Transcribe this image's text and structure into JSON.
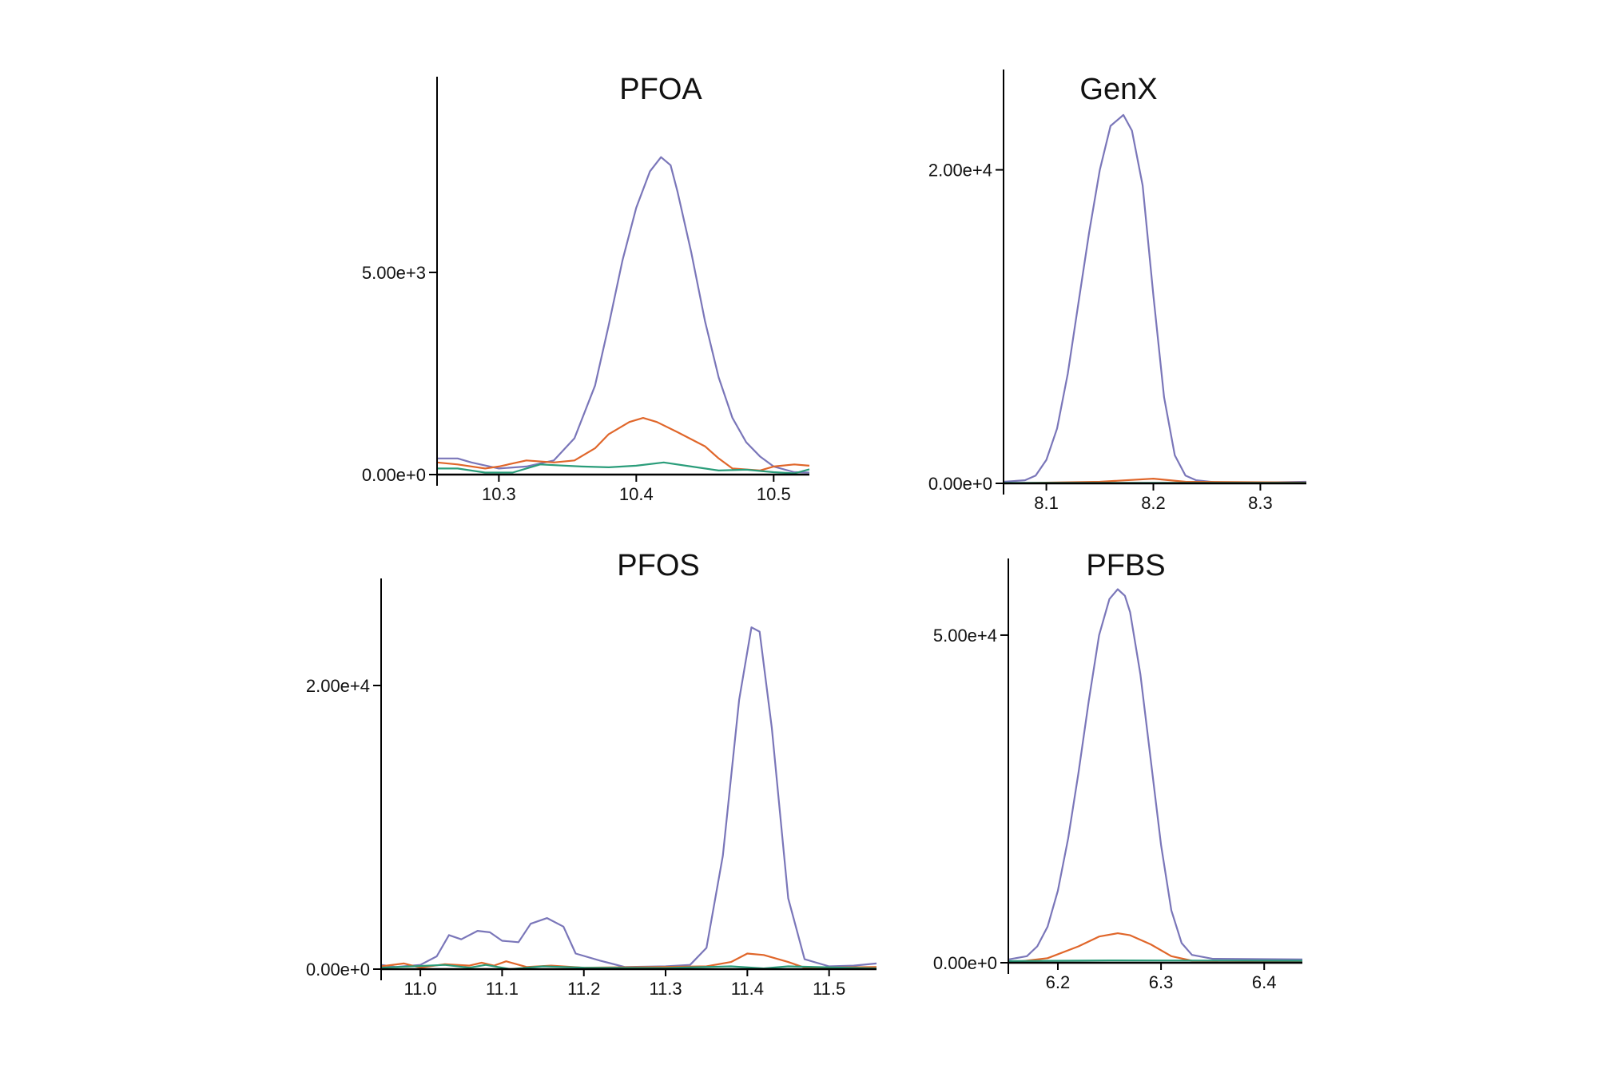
{
  "colors": {
    "series_a": "#7a76b9",
    "series_b": "#e0662a",
    "series_c": "#2a9d7a",
    "axis": "#000000"
  },
  "chart_data": [
    {
      "type": "line",
      "title": "PFOA",
      "xlim": [
        10.255,
        10.526
      ],
      "ylim": [
        0,
        9840
      ],
      "xticks": [
        {
          "v": 10.3,
          "label": "10.3"
        },
        {
          "v": 10.4,
          "label": "10.4"
        },
        {
          "v": 10.5,
          "label": "10.5"
        }
      ],
      "yticks": [
        {
          "v": 0,
          "label": "0.00e+0"
        },
        {
          "v": 5000,
          "label": "5.00e+3"
        }
      ],
      "grid": false,
      "series": [
        {
          "color": "#7a76b9",
          "x": [
            10.255,
            10.27,
            10.28,
            10.3,
            10.32,
            10.34,
            10.355,
            10.37,
            10.38,
            10.39,
            10.4,
            10.41,
            10.418,
            10.425,
            10.43,
            10.44,
            10.45,
            10.46,
            10.47,
            10.48,
            10.49,
            10.5,
            10.515,
            10.526
          ],
          "y": [
            400,
            400,
            300,
            150,
            200,
            350,
            900,
            2200,
            3700,
            5300,
            6600,
            7500,
            7850,
            7650,
            7000,
            5500,
            3800,
            2400,
            1400,
            800,
            450,
            200,
            60,
            50
          ]
        },
        {
          "color": "#e0662a",
          "x": [
            10.255,
            10.27,
            10.29,
            10.3,
            10.32,
            10.34,
            10.355,
            10.37,
            10.38,
            10.395,
            10.405,
            10.415,
            10.43,
            10.45,
            10.46,
            10.47,
            10.49,
            10.5,
            10.515,
            10.526
          ],
          "y": [
            300,
            250,
            150,
            200,
            350,
            300,
            350,
            650,
            1000,
            1300,
            1400,
            1300,
            1050,
            700,
            400,
            150,
            100,
            200,
            250,
            220
          ]
        },
        {
          "color": "#2a9d7a",
          "x": [
            10.255,
            10.27,
            10.29,
            10.31,
            10.33,
            10.36,
            10.38,
            10.4,
            10.42,
            10.44,
            10.46,
            10.48,
            10.5,
            10.515,
            10.526
          ],
          "y": [
            150,
            150,
            50,
            50,
            250,
            200,
            180,
            220,
            300,
            200,
            100,
            120,
            60,
            30,
            130
          ]
        }
      ]
    },
    {
      "type": "line",
      "title": "GenX",
      "xlim": [
        8.06,
        8.343
      ],
      "ylim": [
        0,
        26400
      ],
      "xticks": [
        {
          "v": 8.1,
          "label": "8.1"
        },
        {
          "v": 8.2,
          "label": "8.2"
        },
        {
          "v": 8.3,
          "label": "8.3"
        }
      ],
      "yticks": [
        {
          "v": 0,
          "label": "0.00e+0"
        },
        {
          "v": 20000,
          "label": "2.00e+4"
        }
      ],
      "grid": false,
      "series": [
        {
          "color": "#7a76b9",
          "x": [
            8.06,
            8.08,
            8.09,
            8.1,
            8.11,
            8.12,
            8.13,
            8.14,
            8.15,
            8.16,
            8.172,
            8.18,
            8.19,
            8.2,
            8.21,
            8.22,
            8.23,
            8.24,
            8.26,
            8.3,
            8.343
          ],
          "y": [
            100,
            200,
            500,
            1500,
            3500,
            7000,
            11500,
            16000,
            20000,
            22800,
            23500,
            22500,
            19000,
            12000,
            5500,
            1800,
            500,
            200,
            50,
            50,
            100
          ]
        },
        {
          "color": "#e0662a",
          "x": [
            8.06,
            8.15,
            8.2,
            8.23,
            8.343
          ],
          "y": [
            0,
            100,
            300,
            100,
            50
          ]
        },
        {
          "color": "#2a9d7a",
          "x": [
            8.06,
            8.343
          ],
          "y": [
            30,
            30
          ]
        }
      ]
    },
    {
      "type": "line",
      "title": "PFOS",
      "xlim": [
        10.952,
        11.558
      ],
      "ylim": [
        0,
        27550
      ],
      "xticks": [
        {
          "v": 11.0,
          "label": "11.0"
        },
        {
          "v": 11.1,
          "label": "11.1"
        },
        {
          "v": 11.2,
          "label": "11.2"
        },
        {
          "v": 11.3,
          "label": "11.3"
        },
        {
          "v": 11.4,
          "label": "11.4"
        },
        {
          "v": 11.5,
          "label": "11.5"
        }
      ],
      "yticks": [
        {
          "v": 0,
          "label": "0.00e+0"
        },
        {
          "v": 20000,
          "label": "2.00e+4"
        }
      ],
      "grid": false,
      "series": [
        {
          "color": "#7a76b9",
          "x": [
            10.952,
            10.97,
            11.0,
            11.02,
            11.035,
            11.05,
            11.07,
            11.085,
            11.1,
            11.12,
            11.135,
            11.155,
            11.175,
            11.19,
            11.22,
            11.25,
            11.3,
            11.33,
            11.35,
            11.37,
            11.39,
            11.405,
            11.415,
            11.43,
            11.45,
            11.47,
            11.5,
            11.53,
            11.558
          ],
          "y": [
            300,
            150,
            300,
            900,
            2400,
            2100,
            2700,
            2600,
            2000,
            1900,
            3200,
            3600,
            3000,
            1100,
            600,
            150,
            200,
            300,
            1500,
            8000,
            19000,
            24100,
            23800,
            17000,
            5000,
            700,
            200,
            250,
            400
          ]
        },
        {
          "color": "#e0662a",
          "x": [
            10.952,
            10.98,
            11.0,
            11.03,
            11.06,
            11.075,
            11.09,
            11.105,
            11.13,
            11.16,
            11.2,
            11.29,
            11.35,
            11.38,
            11.4,
            11.42,
            11.45,
            11.47,
            11.558
          ],
          "y": [
            200,
            400,
            100,
            350,
            250,
            450,
            250,
            550,
            150,
            250,
            100,
            150,
            200,
            500,
            1100,
            1000,
            500,
            100,
            150
          ]
        },
        {
          "color": "#2a9d7a",
          "x": [
            10.952,
            11.03,
            11.06,
            11.08,
            11.11,
            11.15,
            11.2,
            11.3,
            11.38,
            11.42,
            11.45,
            11.558
          ],
          "y": [
            100,
            300,
            100,
            300,
            0,
            200,
            100,
            80,
            200,
            50,
            200,
            50
          ]
        }
      ]
    },
    {
      "type": "line",
      "title": "PFBS",
      "xlim": [
        6.152,
        6.437
      ],
      "ylim": [
        0,
        61700
      ],
      "xticks": [
        {
          "v": 6.2,
          "label": "6.2"
        },
        {
          "v": 6.3,
          "label": "6.3"
        },
        {
          "v": 6.4,
          "label": "6.4"
        }
      ],
      "yticks": [
        {
          "v": 0,
          "label": "0.00e+0"
        },
        {
          "v": 50000,
          "label": "5.00e+4"
        }
      ],
      "grid": false,
      "series": [
        {
          "color": "#7a76b9",
          "x": [
            6.152,
            6.17,
            6.18,
            6.19,
            6.2,
            6.21,
            6.22,
            6.23,
            6.24,
            6.25,
            6.258,
            6.265,
            6.27,
            6.28,
            6.29,
            6.3,
            6.31,
            6.32,
            6.33,
            6.35,
            6.437
          ],
          "y": [
            500,
            1000,
            2500,
            5500,
            11000,
            19000,
            29000,
            40000,
            50000,
            55500,
            57000,
            56000,
            53500,
            44000,
            31000,
            18000,
            8000,
            3000,
            1200,
            600,
            500
          ]
        },
        {
          "color": "#e0662a",
          "x": [
            6.152,
            6.19,
            6.22,
            6.24,
            6.258,
            6.27,
            6.29,
            6.31,
            6.33,
            6.437
          ],
          "y": [
            0,
            700,
            2500,
            4000,
            4500,
            4200,
            2800,
            1000,
            300,
            200
          ]
        },
        {
          "color": "#2a9d7a",
          "x": [
            6.152,
            6.25,
            6.437
          ],
          "y": [
            250,
            350,
            300
          ]
        }
      ]
    }
  ]
}
